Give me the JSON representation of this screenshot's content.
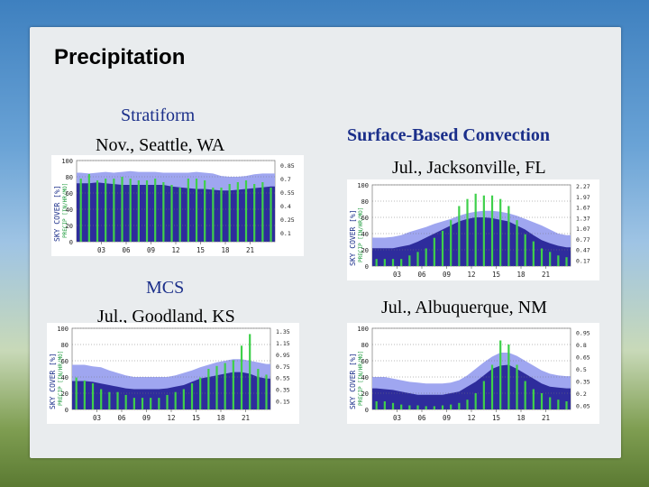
{
  "slide": {
    "title": "Precipitation"
  },
  "labels": {
    "stratiform": "Stratiform",
    "seattle": "Nov., Seattle, WA",
    "surface_based": "Surface-Based Convection",
    "jacksonville": "Jul., Jacksonville, FL",
    "mcs": "MCS",
    "goodland": "Jul., Goodland, KS",
    "albuquerque": "Jul., Albuquerque, NM"
  },
  "chart_data": [
    {
      "type": "area",
      "caption": "Stratiform · Nov., Seattle, WA",
      "ylabel_left": "SKY COVER [%]",
      "ylabel_precip": "PRECIP [IN/HR/MO]",
      "x": [
        0,
        1,
        2,
        3,
        4,
        5,
        6,
        7,
        8,
        9,
        10,
        11,
        12,
        13,
        14,
        15,
        16,
        17,
        18,
        19,
        20,
        21,
        22,
        23
      ],
      "xticks": [
        "03",
        "06",
        "09",
        "12",
        "15",
        "18",
        "21"
      ],
      "left_ticks": [
        "0",
        "20",
        "40",
        "60",
        "80",
        "100"
      ],
      "right_ticks": [
        "0.1",
        "0.25",
        "0.4",
        "0.55",
        "0.7",
        "0.85"
      ],
      "left_range": [
        0,
        100
      ],
      "right_range": [
        0,
        0.9
      ],
      "sky_upper": [
        85,
        84,
        85,
        86,
        85,
        86,
        87,
        86,
        86,
        86,
        85,
        85,
        85,
        85,
        86,
        85,
        84,
        81,
        80,
        80,
        81,
        83,
        84,
        84
      ],
      "sky_lower": [
        72,
        72,
        73,
        72,
        71,
        70,
        70,
        70,
        70,
        70,
        70,
        68,
        67,
        66,
        65,
        65,
        64,
        63,
        63,
        64,
        65,
        66,
        67,
        68
      ],
      "precip": [
        0.7,
        0.75,
        0.68,
        0.7,
        0.7,
        0.72,
        0.7,
        0.68,
        0.68,
        0.7,
        0.66,
        0.63,
        0.6,
        0.7,
        0.7,
        0.68,
        0.6,
        0.6,
        0.64,
        0.66,
        0.68,
        0.64,
        0.66,
        0.6
      ]
    },
    {
      "type": "area",
      "caption": "Surface-Based Convection · Jul., Jacksonville, FL",
      "ylabel_left": "SKY COVER [%]",
      "ylabel_precip": "PRECIP [IN/HR/MO]",
      "x": [
        0,
        1,
        2,
        3,
        4,
        5,
        6,
        7,
        8,
        9,
        10,
        11,
        12,
        13,
        14,
        15,
        16,
        17,
        18,
        19,
        20,
        21,
        22,
        23
      ],
      "xticks": [
        "03",
        "06",
        "09",
        "12",
        "15",
        "18",
        "21"
      ],
      "left_ticks": [
        "0",
        "20",
        "40",
        "60",
        "80",
        "100"
      ],
      "right_ticks": [
        "0.17",
        "0.47",
        "0.77",
        "1.07",
        "1.37",
        "1.67",
        "1.97",
        "2.27"
      ],
      "left_range": [
        0,
        100
      ],
      "right_range": [
        0,
        2.3
      ],
      "sky_upper": [
        35,
        35,
        36,
        38,
        42,
        45,
        48,
        52,
        55,
        58,
        62,
        65,
        67,
        68,
        68,
        67,
        65,
        62,
        58,
        54,
        50,
        45,
        40,
        38
      ],
      "sky_lower": [
        22,
        22,
        22,
        24,
        26,
        30,
        35,
        40,
        45,
        50,
        55,
        58,
        60,
        60,
        59,
        57,
        55,
        50,
        45,
        38,
        32,
        28,
        25,
        23
      ],
      "precip": [
        0.2,
        0.2,
        0.2,
        0.2,
        0.3,
        0.4,
        0.5,
        0.8,
        1.0,
        1.3,
        1.7,
        1.9,
        2.05,
        2.0,
        2.0,
        1.9,
        1.7,
        1.3,
        0.9,
        0.7,
        0.5,
        0.4,
        0.3,
        0.25
      ]
    },
    {
      "type": "area",
      "caption": "MCS · Jul., Goodland, KS",
      "ylabel_left": "SKY COVER [%]",
      "ylabel_precip": "PRECIP [IN/HR/MO]",
      "x": [
        0,
        1,
        2,
        3,
        4,
        5,
        6,
        7,
        8,
        9,
        10,
        11,
        12,
        13,
        14,
        15,
        16,
        17,
        18,
        19,
        20,
        21,
        22,
        23
      ],
      "xticks": [
        "03",
        "06",
        "09",
        "12",
        "15",
        "18",
        "21"
      ],
      "left_ticks": [
        "0",
        "20",
        "40",
        "60",
        "80",
        "100"
      ],
      "right_ticks": [
        "0.15",
        "0.35",
        "0.55",
        "0.75",
        "0.95",
        "1.15",
        "1.35"
      ],
      "left_range": [
        0,
        100
      ],
      "right_range": [
        0,
        1.4
      ],
      "sky_upper": [
        55,
        55,
        53,
        52,
        48,
        45,
        42,
        40,
        40,
        40,
        40,
        40,
        42,
        45,
        48,
        52,
        55,
        58,
        60,
        62,
        62,
        60,
        58,
        56
      ],
      "sky_lower": [
        35,
        35,
        34,
        32,
        30,
        28,
        26,
        25,
        25,
        25,
        25,
        26,
        28,
        30,
        34,
        38,
        40,
        42,
        44,
        46,
        46,
        44,
        40,
        38
      ],
      "precip": [
        0.55,
        0.5,
        0.45,
        0.35,
        0.3,
        0.3,
        0.25,
        0.2,
        0.2,
        0.2,
        0.2,
        0.25,
        0.3,
        0.35,
        0.45,
        0.55,
        0.7,
        0.75,
        0.8,
        0.85,
        1.1,
        1.3,
        0.7,
        0.6
      ]
    },
    {
      "type": "area",
      "caption": "Jul., Albuquerque, NM",
      "ylabel_left": "SKY COVER [%]",
      "ylabel_precip": "PRECIP [IN/HR/MO]",
      "x": [
        0,
        1,
        2,
        3,
        4,
        5,
        6,
        7,
        8,
        9,
        10,
        11,
        12,
        13,
        14,
        15,
        16,
        17,
        18,
        19,
        20,
        21,
        22,
        23
      ],
      "xticks": [
        "03",
        "06",
        "09",
        "12",
        "15",
        "18",
        "21"
      ],
      "left_ticks": [
        "0",
        "20",
        "40",
        "60",
        "80",
        "100"
      ],
      "right_ticks": [
        "0.05",
        "0.2",
        "0.35",
        "0.5",
        "0.65",
        "0.8",
        "0.95"
      ],
      "left_range": [
        0,
        100
      ],
      "right_range": [
        0,
        1.0
      ],
      "sky_upper": [
        40,
        40,
        38,
        36,
        34,
        33,
        32,
        32,
        32,
        33,
        36,
        42,
        50,
        58,
        65,
        70,
        70,
        66,
        60,
        54,
        48,
        44,
        42,
        41
      ],
      "sky_lower": [
        26,
        25,
        24,
        22,
        20,
        18,
        18,
        18,
        18,
        20,
        22,
        28,
        34,
        42,
        50,
        54,
        55,
        50,
        44,
        38,
        32,
        28,
        27,
        26
      ],
      "precip": [
        0.1,
        0.1,
        0.08,
        0.06,
        0.05,
        0.05,
        0.04,
        0.04,
        0.05,
        0.06,
        0.08,
        0.12,
        0.2,
        0.35,
        0.55,
        0.85,
        0.8,
        0.55,
        0.35,
        0.25,
        0.2,
        0.15,
        0.12,
        0.1
      ]
    }
  ]
}
